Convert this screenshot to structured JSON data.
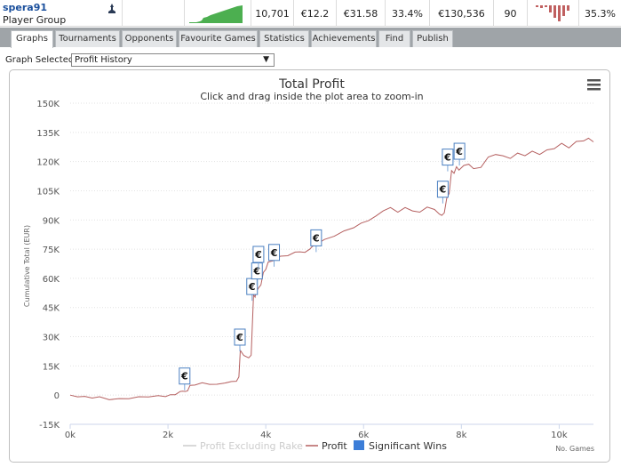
{
  "player": {
    "name": "spera91",
    "group": "Player Group"
  },
  "stats": {
    "games": "10,701",
    "avg_stake": "€12.2",
    "avg_profit": "€31.58",
    "roi": "33.4%",
    "profit": "€130,536",
    "ability": "90",
    "itm": "35.3%"
  },
  "tabs": [
    {
      "label": "Graphs"
    },
    {
      "label": "Tournaments"
    },
    {
      "label": "Opponents"
    },
    {
      "label": "Favourite Games"
    },
    {
      "label": "Statistics"
    },
    {
      "label": "Achievements"
    },
    {
      "label": "Find"
    },
    {
      "label": "Publish"
    }
  ],
  "graph_select": {
    "label": "Graph Selected:",
    "value": "Profit History"
  },
  "colors": {
    "profit_line": "#b56060",
    "excl_rake_line": "#cccccc",
    "sig_wins": "#3b7dd8",
    "header_bar_green": "#4caf50",
    "header_bar_red": "#c06060"
  },
  "chart_data": {
    "type": "line",
    "title": "Total Profit",
    "subtitle": "Click and drag inside the plot area to zoom-in",
    "xlabel": "No. Games",
    "ylabel": "Cumulative Total (EUR)",
    "xlim": [
      0,
      10701
    ],
    "ylim": [
      -15000,
      150000
    ],
    "x_ticks": [
      {
        "value": 0,
        "label": "0k"
      },
      {
        "value": 2000,
        "label": "2k"
      },
      {
        "value": 4000,
        "label": "4k"
      },
      {
        "value": 6000,
        "label": "6k"
      },
      {
        "value": 8000,
        "label": "8k"
      },
      {
        "value": 10000,
        "label": "10k"
      }
    ],
    "y_ticks": [
      {
        "value": -15000,
        "label": "-15K"
      },
      {
        "value": 0,
        "label": "0"
      },
      {
        "value": 15000,
        "label": "15K"
      },
      {
        "value": 30000,
        "label": "30K"
      },
      {
        "value": 45000,
        "label": "45K"
      },
      {
        "value": 60000,
        "label": "60K"
      },
      {
        "value": 75000,
        "label": "75K"
      },
      {
        "value": 90000,
        "label": "90K"
      },
      {
        "value": 105000,
        "label": "105K"
      },
      {
        "value": 120000,
        "label": "120K"
      },
      {
        "value": 135000,
        "label": "135K"
      },
      {
        "value": 150000,
        "label": "150K"
      }
    ],
    "grid": true,
    "legend": "bottom",
    "series": [
      {
        "name": "Profit",
        "x": [
          0,
          150,
          300,
          450,
          600,
          800,
          1000,
          1200,
          1400,
          1600,
          1800,
          1950,
          2050,
          2150,
          2250,
          2300,
          2350,
          2400,
          2450,
          2550,
          2700,
          2850,
          3000,
          3150,
          3300,
          3400,
          3450,
          3480,
          3550,
          3650,
          3700,
          3750,
          3780,
          3800,
          3860,
          3900,
          3950,
          4000,
          4050,
          4150,
          4300,
          4450,
          4600,
          4700,
          4800,
          4900,
          4950,
          5050,
          5200,
          5400,
          5600,
          5800,
          5950,
          6100,
          6250,
          6400,
          6550,
          6700,
          6850,
          7000,
          7150,
          7300,
          7450,
          7550,
          7600,
          7650,
          7700,
          7750,
          7800,
          7850,
          7900,
          7950,
          8050,
          8150,
          8250,
          8400,
          8550,
          8700,
          8850,
          9000,
          9150,
          9300,
          9450,
          9600,
          9750,
          9900,
          10050,
          10200,
          10350,
          10500,
          10600,
          10701
        ],
        "y": [
          0,
          -500,
          -1000,
          -1500,
          -1200,
          -2000,
          -1800,
          -1500,
          -1200,
          -900,
          -600,
          -400,
          200,
          600,
          1500,
          2000,
          1500,
          2500,
          5000,
          5500,
          6000,
          5500,
          5200,
          6500,
          7000,
          7500,
          9000,
          23000,
          20000,
          19500,
          20500,
          52000,
          50000,
          53000,
          55000,
          57000,
          63000,
          65000,
          68000,
          69000,
          71000,
          72000,
          73500,
          74000,
          73000,
          75000,
          76000,
          78000,
          80000,
          82000,
          84000,
          86000,
          88000,
          90000,
          92000,
          95000,
          96000,
          94000,
          96000,
          95000,
          94000,
          97000,
          95000,
          93000,
          92000,
          94000,
          101000,
          104000,
          115000,
          114000,
          117000,
          116000,
          118000,
          119000,
          116000,
          117000,
          122000,
          124000,
          123000,
          122000,
          124000,
          123000,
          125000,
          124000,
          126000,
          127000,
          129000,
          127000,
          130000,
          131000,
          132000,
          130500
        ]
      }
    ],
    "legend_entries": [
      {
        "name": "Profit Excluding Rake"
      },
      {
        "name": "Profit"
      },
      {
        "name": "Significant Wins"
      }
    ],
    "significant_wins": [
      {
        "x": 2340,
        "y": 9800,
        "label": "€"
      },
      {
        "x": 3470,
        "y": 29800,
        "label": "€"
      },
      {
        "x": 3720,
        "y": 55800,
        "label": "€"
      },
      {
        "x": 3820,
        "y": 63800,
        "label": "€"
      },
      {
        "x": 3850,
        "y": 72300,
        "label": "€"
      },
      {
        "x": 4170,
        "y": 73300,
        "label": "€"
      },
      {
        "x": 5030,
        "y": 80800,
        "label": "€"
      },
      {
        "x": 7620,
        "y": 105800,
        "label": "€"
      },
      {
        "x": 7720,
        "y": 122300,
        "label": "€"
      },
      {
        "x": 7960,
        "y": 125300,
        "label": "€"
      }
    ]
  }
}
